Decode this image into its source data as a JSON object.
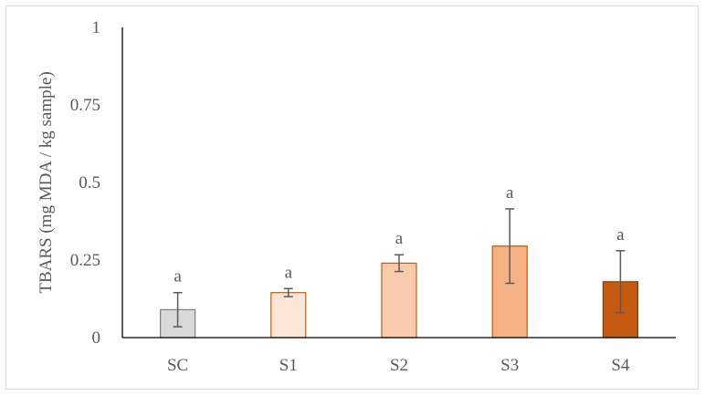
{
  "chart_data": {
    "type": "bar",
    "title": "",
    "xlabel": "",
    "ylabel": "TBARS (mg MDA / kg sample)",
    "ylim": [
      0,
      1
    ],
    "yticks": [
      {
        "value": 0,
        "label": "0"
      },
      {
        "value": 0.25,
        "label": "0.25"
      },
      {
        "value": 0.5,
        "label": "0.5"
      },
      {
        "value": 0.75,
        "label": "0.75"
      },
      {
        "value": 1,
        "label": "1"
      }
    ],
    "grid": false,
    "categories": [
      "SC",
      "S1",
      "S2",
      "S3",
      "S4"
    ],
    "values": [
      0.09,
      0.145,
      0.24,
      0.295,
      0.18
    ],
    "error": [
      0.055,
      0.013,
      0.027,
      0.12,
      0.1
    ],
    "significance": [
      "a",
      "a",
      "a",
      "a",
      "a"
    ],
    "colors": [
      "#d9d9d9",
      "#fbe5d6",
      "#f8cbad",
      "#f4b183",
      "#c55a11"
    ],
    "stroke_colors": [
      "#7f7f7f",
      "#c55a11",
      "#c55a11",
      "#c55a11",
      "#843c0c"
    ],
    "axis_color": "#000000",
    "errorbar_color": "#595959"
  }
}
